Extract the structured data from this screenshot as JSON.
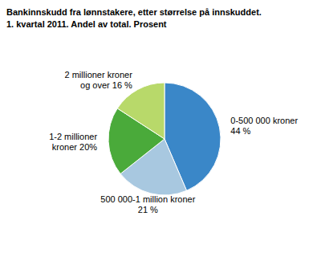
{
  "chart_data": {
    "type": "pie",
    "title": "Bankinnskudd fra lønnstakere, etter størrelse på innskuddet.",
    "subtitle": "1. kvartal 2011. Andel av total. Prosent",
    "values": [
      44,
      21,
      20,
      16
    ],
    "value_labels": [
      "0-500 000 kroner\n44 %",
      "500 000-1 million kroner\n21 %",
      "1-2 millioner\nkroner 20%",
      "2 millioner kroner\nog over 16 %"
    ],
    "data_labels": true,
    "colors": [
      "#3a87c8",
      "#a8c8e0",
      "#4aaa3a",
      "#b8d96a"
    ]
  }
}
